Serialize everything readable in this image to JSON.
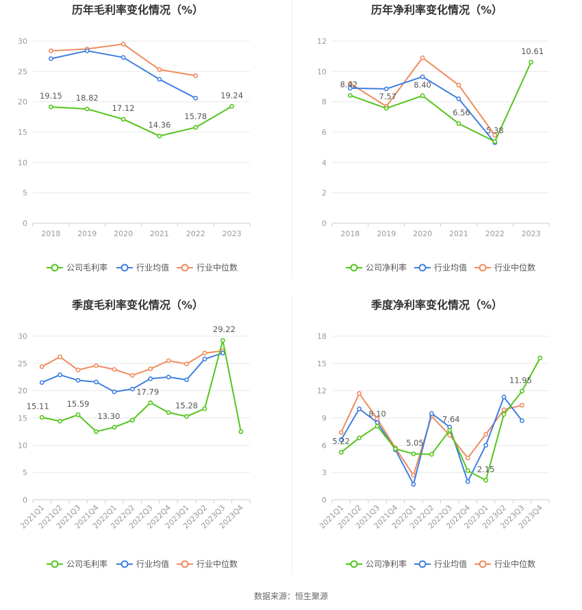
{
  "source": "数据来源：恒生聚源",
  "chart_data": [
    {
      "type": "line",
      "title": "历年毛利率变化情况（%）",
      "categories": [
        "2018",
        "2019",
        "2020",
        "2021",
        "2022",
        "2023"
      ],
      "ylim": [
        0,
        30
      ],
      "yticks": [
        0,
        5,
        10,
        15,
        20,
        25,
        30
      ],
      "legend_position": "bottom",
      "series": [
        {
          "name": "公司毛利率",
          "color": "#52c41a",
          "values": [
            19.15,
            18.82,
            17.12,
            14.36,
            15.78,
            19.24
          ],
          "labels": [
            "19.15",
            "18.82",
            "17.12",
            "14.36",
            "15.78",
            "19.24"
          ]
        },
        {
          "name": "行业均值",
          "color": "#3d7ee0",
          "values": [
            27.1,
            28.4,
            27.3,
            23.7,
            20.6,
            null
          ],
          "labels": []
        },
        {
          "name": "行业中位数",
          "color": "#f08a5d",
          "values": [
            28.4,
            28.7,
            29.5,
            25.3,
            24.3,
            null
          ],
          "labels": []
        }
      ]
    },
    {
      "type": "line",
      "title": "历年净利率变化情况（%）",
      "categories": [
        "2018",
        "2019",
        "2020",
        "2021",
        "2022",
        "2023"
      ],
      "ylim": [
        0,
        12
      ],
      "yticks": [
        0,
        2,
        4,
        6,
        8,
        10,
        12
      ],
      "legend_position": "bottom",
      "series": [
        {
          "name": "公司净利率",
          "color": "#52c41a",
          "values": [
            8.42,
            7.57,
            8.4,
            6.56,
            5.38,
            10.61
          ],
          "labels": [
            "8.42",
            "7.57",
            "8.40",
            "6.56",
            "5.38",
            "10.61"
          ]
        },
        {
          "name": "行业均值",
          "color": "#3d7ee0",
          "values": [
            8.9,
            8.85,
            9.65,
            8.2,
            5.3,
            null
          ],
          "labels": []
        },
        {
          "name": "行业中位数",
          "color": "#f08a5d",
          "values": [
            9.2,
            7.7,
            10.9,
            9.1,
            5.8,
            null
          ],
          "labels": []
        }
      ]
    },
    {
      "type": "line",
      "title": "季度毛利率变化情况（%）",
      "categories": [
        "2021Q1",
        "2021Q2",
        "2021Q3",
        "2021Q4",
        "2022Q1",
        "2022Q2",
        "2022Q3",
        "2022Q4",
        "2023Q1",
        "2023Q2",
        "2023Q3",
        "2023Q4"
      ],
      "ylim": [
        0,
        30
      ],
      "yticks": [
        0,
        5,
        10,
        15,
        20,
        25,
        30
      ],
      "legend_position": "bottom",
      "series": [
        {
          "name": "公司毛利率",
          "color": "#52c41a",
          "values": [
            15.11,
            14.4,
            15.59,
            12.5,
            13.3,
            14.6,
            17.79,
            16.0,
            15.28,
            16.7,
            29.22,
            12.5
          ],
          "labels": [
            "15.11",
            "",
            "15.59",
            "",
            "13.30",
            "",
            "17.79",
            "",
            "15.28",
            "",
            "29.22",
            ""
          ]
        },
        {
          "name": "行业均值",
          "color": "#3d7ee0",
          "values": [
            21.5,
            22.9,
            21.9,
            21.6,
            19.8,
            20.3,
            22.2,
            22.5,
            22.0,
            25.8,
            26.9,
            null
          ],
          "labels": []
        },
        {
          "name": "行业中位数",
          "color": "#f08a5d",
          "values": [
            24.4,
            26.2,
            23.8,
            24.6,
            23.9,
            22.8,
            24.0,
            25.5,
            24.9,
            26.9,
            27.3,
            null
          ],
          "labels": []
        }
      ]
    },
    {
      "type": "line",
      "title": "季度净利率变化情况（%）",
      "categories": [
        "2021Q1",
        "2021Q2",
        "2021Q3",
        "2021Q4",
        "2022Q1",
        "2022Q2",
        "2022Q3",
        "2022Q4",
        "2023Q1",
        "2023Q2",
        "2023Q3",
        "2023Q4"
      ],
      "ylim": [
        0,
        18
      ],
      "yticks": [
        0,
        3,
        6,
        9,
        12,
        15,
        18
      ],
      "legend_position": "bottom",
      "series": [
        {
          "name": "公司净利率",
          "color": "#52c41a",
          "values": [
            5.22,
            6.8,
            8.1,
            5.6,
            5.05,
            5.0,
            7.64,
            3.2,
            2.15,
            9.4,
            11.95,
            15.6
          ],
          "labels": [
            "5.22",
            "",
            "8.10",
            "",
            "5.05",
            "",
            "7.64",
            "",
            "2.15",
            "",
            "11.95",
            ""
          ]
        },
        {
          "name": "行业均值",
          "color": "#3d7ee0",
          "values": [
            6.6,
            10.0,
            8.5,
            5.5,
            1.7,
            9.5,
            8.0,
            2.0,
            6.0,
            11.3,
            8.7,
            null
          ],
          "labels": []
        },
        {
          "name": "行业中位数",
          "color": "#f08a5d",
          "values": [
            7.4,
            11.7,
            8.9,
            5.7,
            2.7,
            9.2,
            7.1,
            4.6,
            7.2,
            9.9,
            10.4,
            null
          ],
          "labels": []
        }
      ]
    }
  ]
}
